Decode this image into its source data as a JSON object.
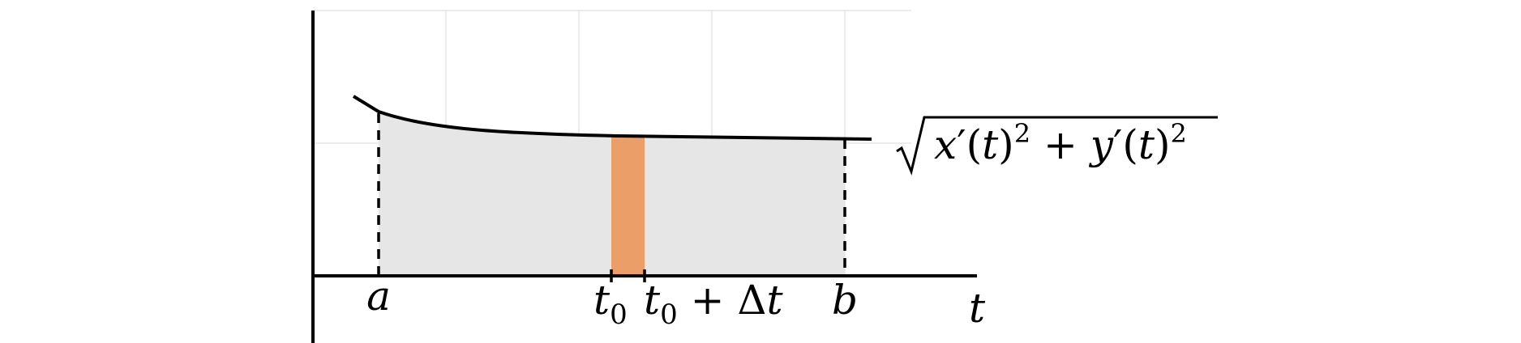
{
  "diagram": {
    "colors": {
      "area_fill": "#e6e6e6",
      "strip_fill": "#eb9e68",
      "curve": "#000000",
      "grid": "#e0e0e0"
    },
    "t_labels": {
      "a": "a",
      "t0_var": "t",
      "t0_sub": "0",
      "t0dt_var": "t",
      "t0dt_sub": "0",
      "t0dt_plus": " + ",
      "t0dt_delta": "Δ",
      "t0dt_t": "t",
      "b": "b",
      "axis": "t"
    },
    "curve_label": {
      "x": "x",
      "prime1": "′",
      "open1": "(",
      "t1": "t",
      "close1": ")",
      "sq1": "2",
      "plus": " + ",
      "y": "y",
      "prime2": "′",
      "open2": "(",
      "t2": "t",
      "close2": ")",
      "sq2": "2"
    }
  }
}
